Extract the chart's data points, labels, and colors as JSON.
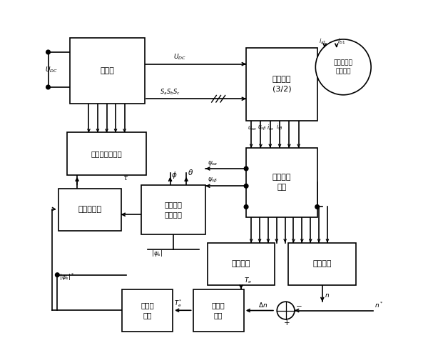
{
  "bg": "#ffffff",
  "lw": 1.2,
  "fs": 8.0,
  "blocks": {
    "inverter": [
      0.075,
      0.7,
      0.22,
      0.195,
      "逆变器"
    ],
    "coord": [
      0.595,
      0.65,
      0.21,
      0.215,
      "坐标变换\n(3/2)"
    ],
    "vtable": [
      0.065,
      0.49,
      0.235,
      0.125,
      "电压矢量选择表"
    ],
    "flux_reg": [
      0.04,
      0.325,
      0.185,
      0.125,
      "磁链调节器"
    ],
    "sector": [
      0.285,
      0.315,
      0.19,
      0.145,
      "定子磁链\n扇区判断"
    ],
    "flux_obs": [
      0.595,
      0.365,
      0.21,
      0.205,
      "定子磁链\n观测"
    ],
    "torq_est": [
      0.48,
      0.165,
      0.2,
      0.125,
      "转矩估计"
    ],
    "speed_est": [
      0.72,
      0.165,
      0.2,
      0.125,
      "转速估计"
    ],
    "torq_reg": [
      0.228,
      0.028,
      0.15,
      0.125,
      "转矩调\n节器"
    ],
    "speed_reg": [
      0.438,
      0.028,
      0.15,
      0.125,
      "转速调\n节器"
    ]
  },
  "motor": [
    0.882,
    0.808,
    0.082
  ],
  "sum": [
    0.712,
    0.09,
    0.026
  ]
}
